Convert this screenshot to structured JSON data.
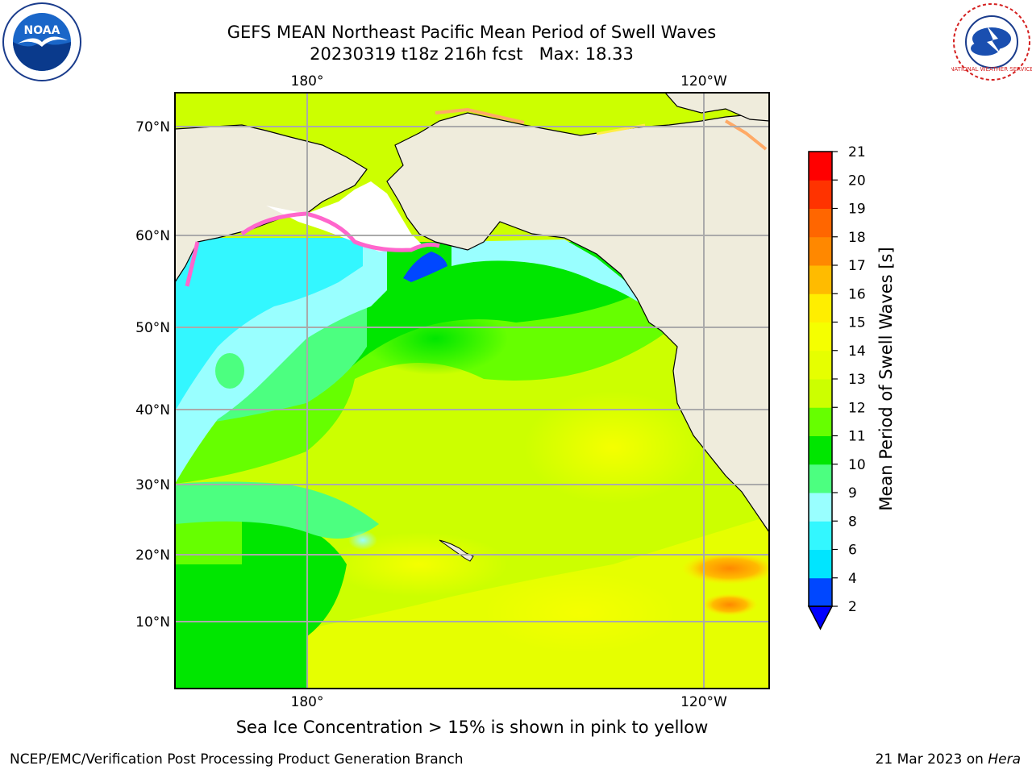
{
  "header": {
    "title_line1": "GEFS MEAN Northeast Pacific Mean Period of Swell Waves",
    "title_line2": "20230319 t18z 216h fcst   Max: 18.33"
  },
  "logos": {
    "left_text": "NOAA",
    "right_text": "NATIONAL WEATHER SERVICE"
  },
  "map": {
    "lon_labels": [
      "180°",
      "120°W"
    ],
    "lat_labels": [
      "70°N",
      "60°N",
      "50°N",
      "40°N",
      "30°N",
      "20°N",
      "10°N"
    ]
  },
  "colorbar": {
    "label": "Mean Period of Swell Waves [s]",
    "ticks": [
      "2",
      "4",
      "6",
      "8",
      "9",
      "10",
      "11",
      "12",
      "13",
      "14",
      "15",
      "16",
      "17",
      "18",
      "19",
      "20",
      "21"
    ],
    "colors": [
      "#0047ff",
      "#00e5ff",
      "#33f7ff",
      "#99ffff",
      "#4cff80",
      "#00e600",
      "#66ff00",
      "#ccff00",
      "#e6ff00",
      "#f5ff00",
      "#ffee00",
      "#ffbb00",
      "#ff8800",
      "#ff6600",
      "#ff3300",
      "#ff0000"
    ],
    "under_color": "#0000ff"
  },
  "footer": {
    "note": "Sea Ice Concentration > 15% is shown in pink to yellow",
    "left": "NCEP/EMC/Verification Post Processing Product Generation Branch",
    "right_prefix": "21 Mar 2023 on ",
    "right_host": "Hera"
  }
}
